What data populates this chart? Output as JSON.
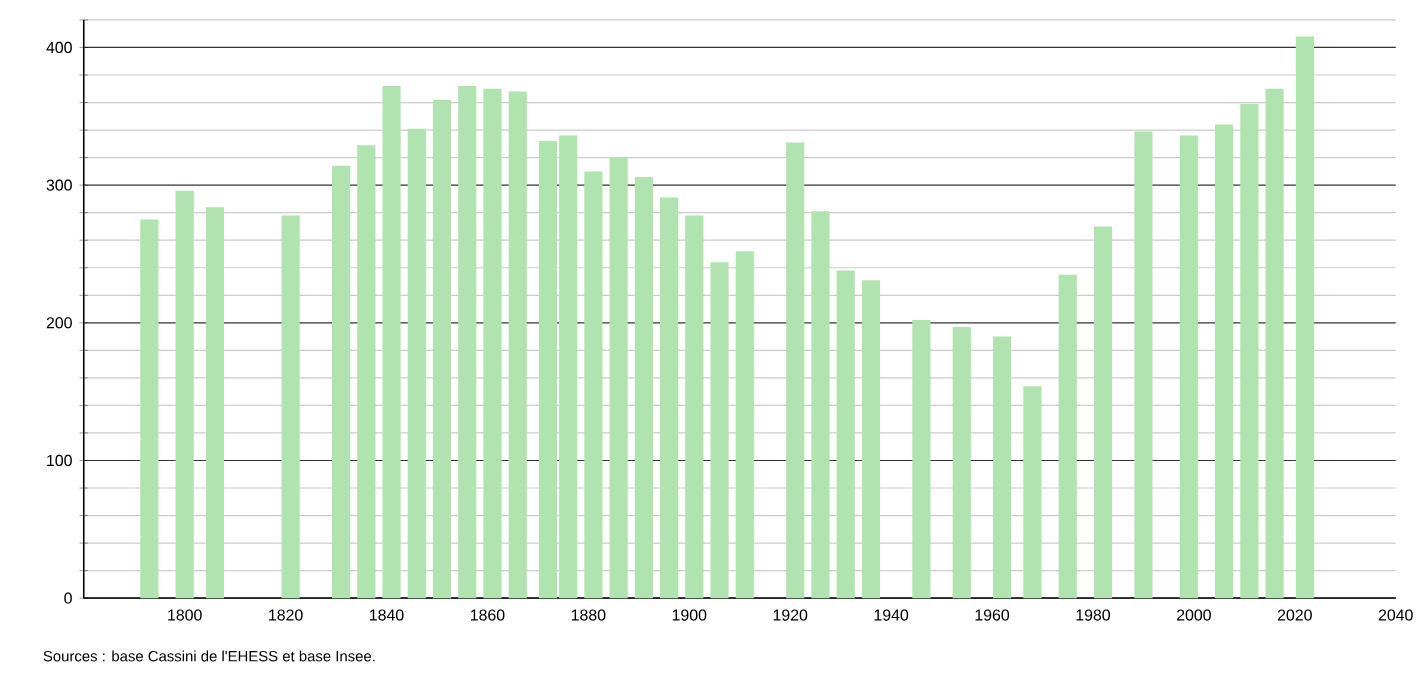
{
  "chart_data": {
    "type": "bar",
    "color": "#b0e3b0",
    "x": [
      1793,
      1800,
      1806,
      1821,
      1831,
      1836,
      1841,
      1846,
      1851,
      1856,
      1861,
      1866,
      1872,
      1876,
      1881,
      1886,
      1891,
      1896,
      1901,
      1906,
      1911,
      1921,
      1926,
      1931,
      1936,
      1946,
      1954,
      1962,
      1968,
      1975,
      1982,
      1990,
      1999,
      2006,
      2011,
      2016,
      2022
    ],
    "values": [
      275,
      296,
      284,
      278,
      314,
      329,
      372,
      341,
      362,
      372,
      370,
      368,
      332,
      336,
      310,
      320,
      306,
      291,
      278,
      244,
      252,
      331,
      281,
      238,
      231,
      202,
      197,
      190,
      154,
      235,
      270,
      339,
      336,
      344,
      359,
      370,
      408
    ],
    "xlim": [
      1780,
      2040
    ],
    "xticks": [
      1800,
      1820,
      1840,
      1860,
      1880,
      1900,
      1920,
      1940,
      1960,
      1980,
      2000,
      2020,
      2040
    ],
    "ylim": [
      0,
      420
    ],
    "yticks": [
      0,
      {
        "value": 20,
        "label": null
      },
      {
        "value": 40,
        "label": null
      },
      {
        "value": 60,
        "label": null
      },
      {
        "value": 80,
        "label": null
      },
      100,
      {
        "value": 120,
        "label": null
      },
      {
        "value": 140,
        "label": null
      },
      {
        "value": 160,
        "label": null
      },
      {
        "value": 180,
        "label": null
      },
      200,
      {
        "value": 220,
        "label": null
      },
      {
        "value": 240,
        "label": null
      },
      {
        "value": 260,
        "label": null
      },
      {
        "value": 280,
        "label": null
      },
      300,
      {
        "value": 320,
        "label": null
      },
      {
        "value": 340,
        "label": null
      },
      {
        "value": 360,
        "label": null
      },
      {
        "value": 380,
        "label": null
      },
      400,
      {
        "value": 420,
        "label": null
      }
    ],
    "grid": "y",
    "annotations": [
      "Sources : base Cassini de l'EHESS et base Insee."
    ]
  }
}
